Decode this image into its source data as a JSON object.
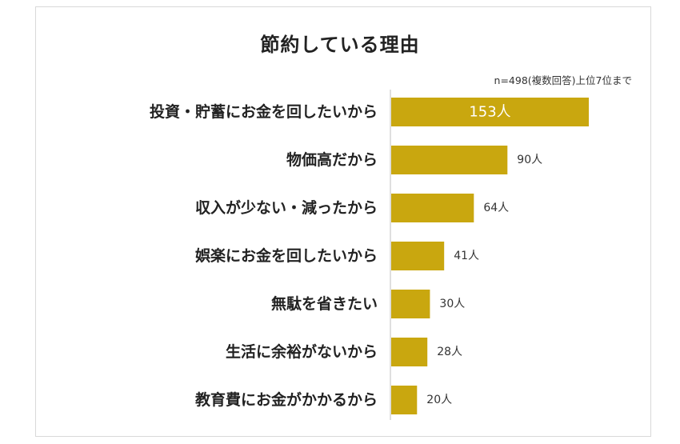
{
  "chart_data": {
    "type": "bar",
    "orientation": "horizontal",
    "title": "節約している理由",
    "note": "n=498(複数回答)上位7位まで",
    "unit": "人",
    "bar_color": "#c9a70f",
    "categories": [
      "投資・貯蓄にお金を回したいから",
      "物価高だから",
      "収入が少ない・減ったから",
      "娯楽にお金を回したいから",
      "無駄を省きたい",
      "生活に余裕がないから",
      "教育費にお金がかかるから"
    ],
    "values": [
      153,
      90,
      64,
      41,
      30,
      28,
      20
    ],
    "data_labels": [
      "153人",
      "90人",
      "64人",
      "41人",
      "30人",
      "28人",
      "20人"
    ],
    "xlim": [
      0,
      153
    ],
    "grid": false
  }
}
